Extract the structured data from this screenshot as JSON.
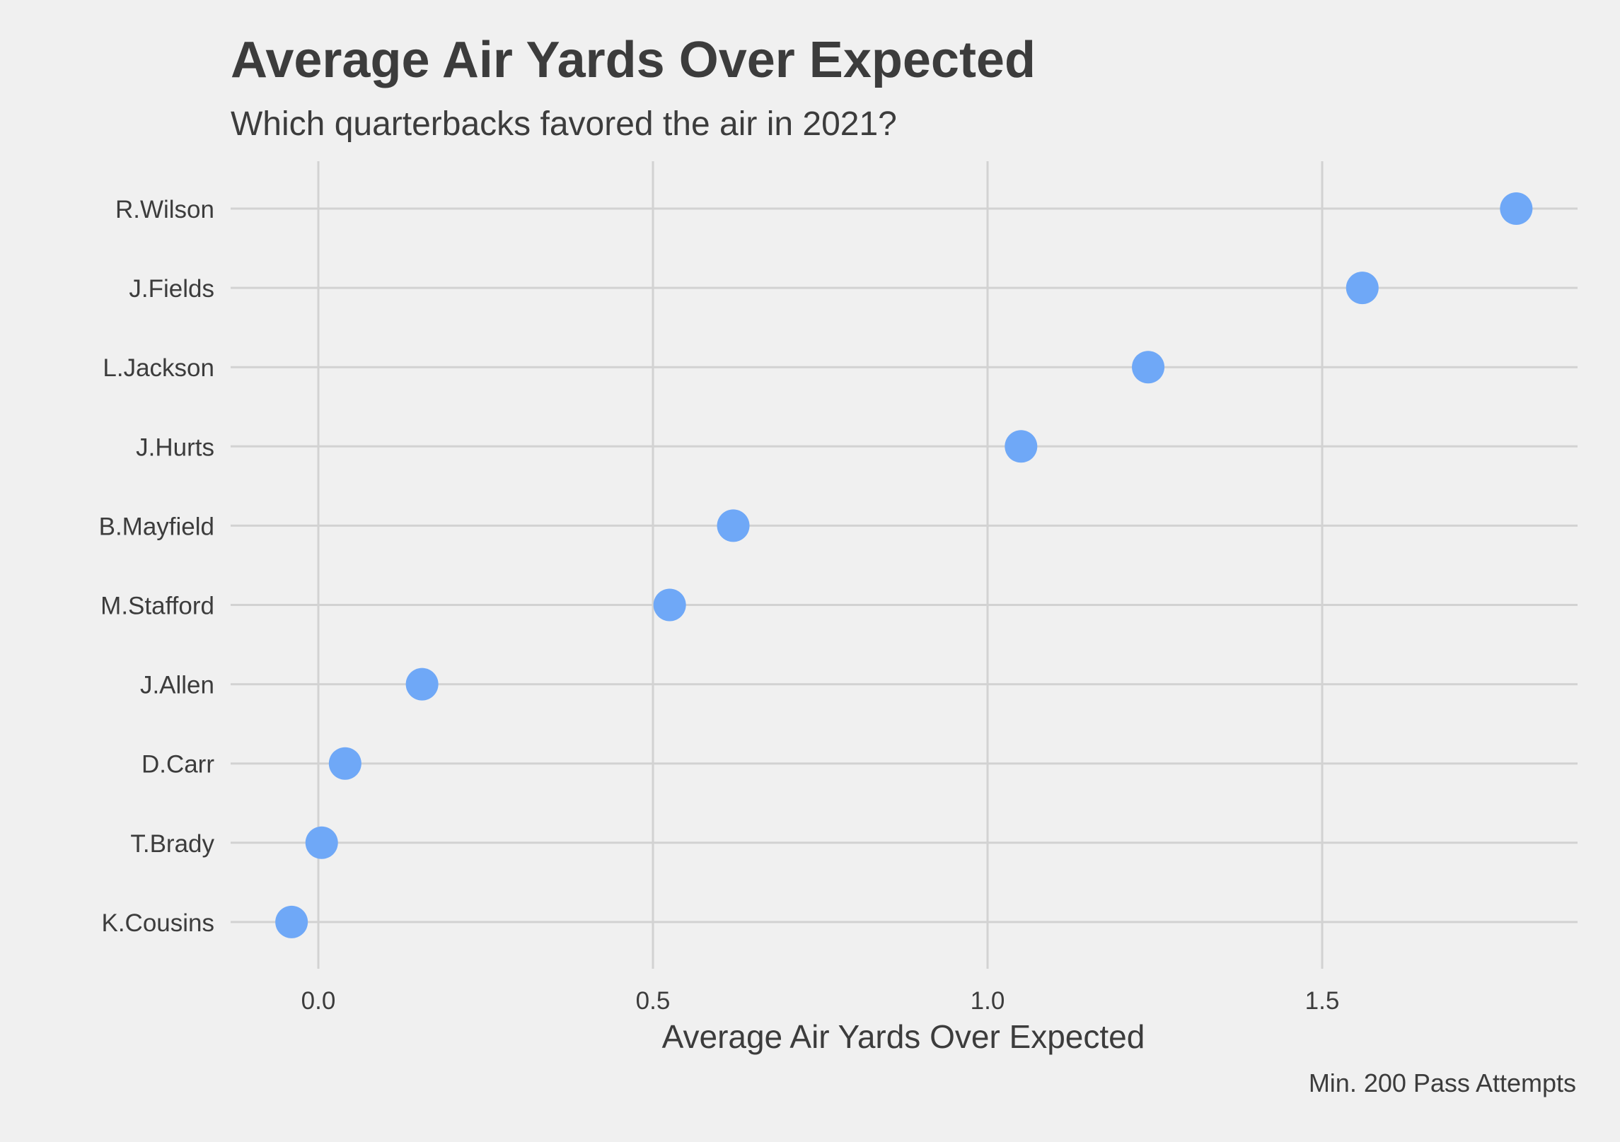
{
  "chart_data": {
    "type": "scatter",
    "title": "Average Air Yards Over Expected",
    "subtitle": "Which quarterbacks favored the air in 2021?",
    "xlabel": "Average Air Yards Over Expected",
    "ylabel": "",
    "caption": "Min. 200 Pass Attempts",
    "xlim": [
      -0.13,
      1.88
    ],
    "x_ticks": [
      "0.0",
      "0.5",
      "1.0",
      "1.5"
    ],
    "x_tick_values": [
      0.0,
      0.5,
      1.0,
      1.5
    ],
    "grid": true,
    "legend": "none",
    "point_color": "#6fa8f7",
    "categories": [
      "R.Wilson",
      "J.Fields",
      "L.Jackson",
      "J.Hurts",
      "B.Mayfield",
      "M.Stafford",
      "J.Allen",
      "D.Carr",
      "T.Brady",
      "K.Cousins"
    ],
    "values": [
      1.79,
      1.56,
      1.24,
      1.05,
      0.62,
      0.525,
      0.155,
      0.04,
      0.005,
      -0.04
    ]
  }
}
